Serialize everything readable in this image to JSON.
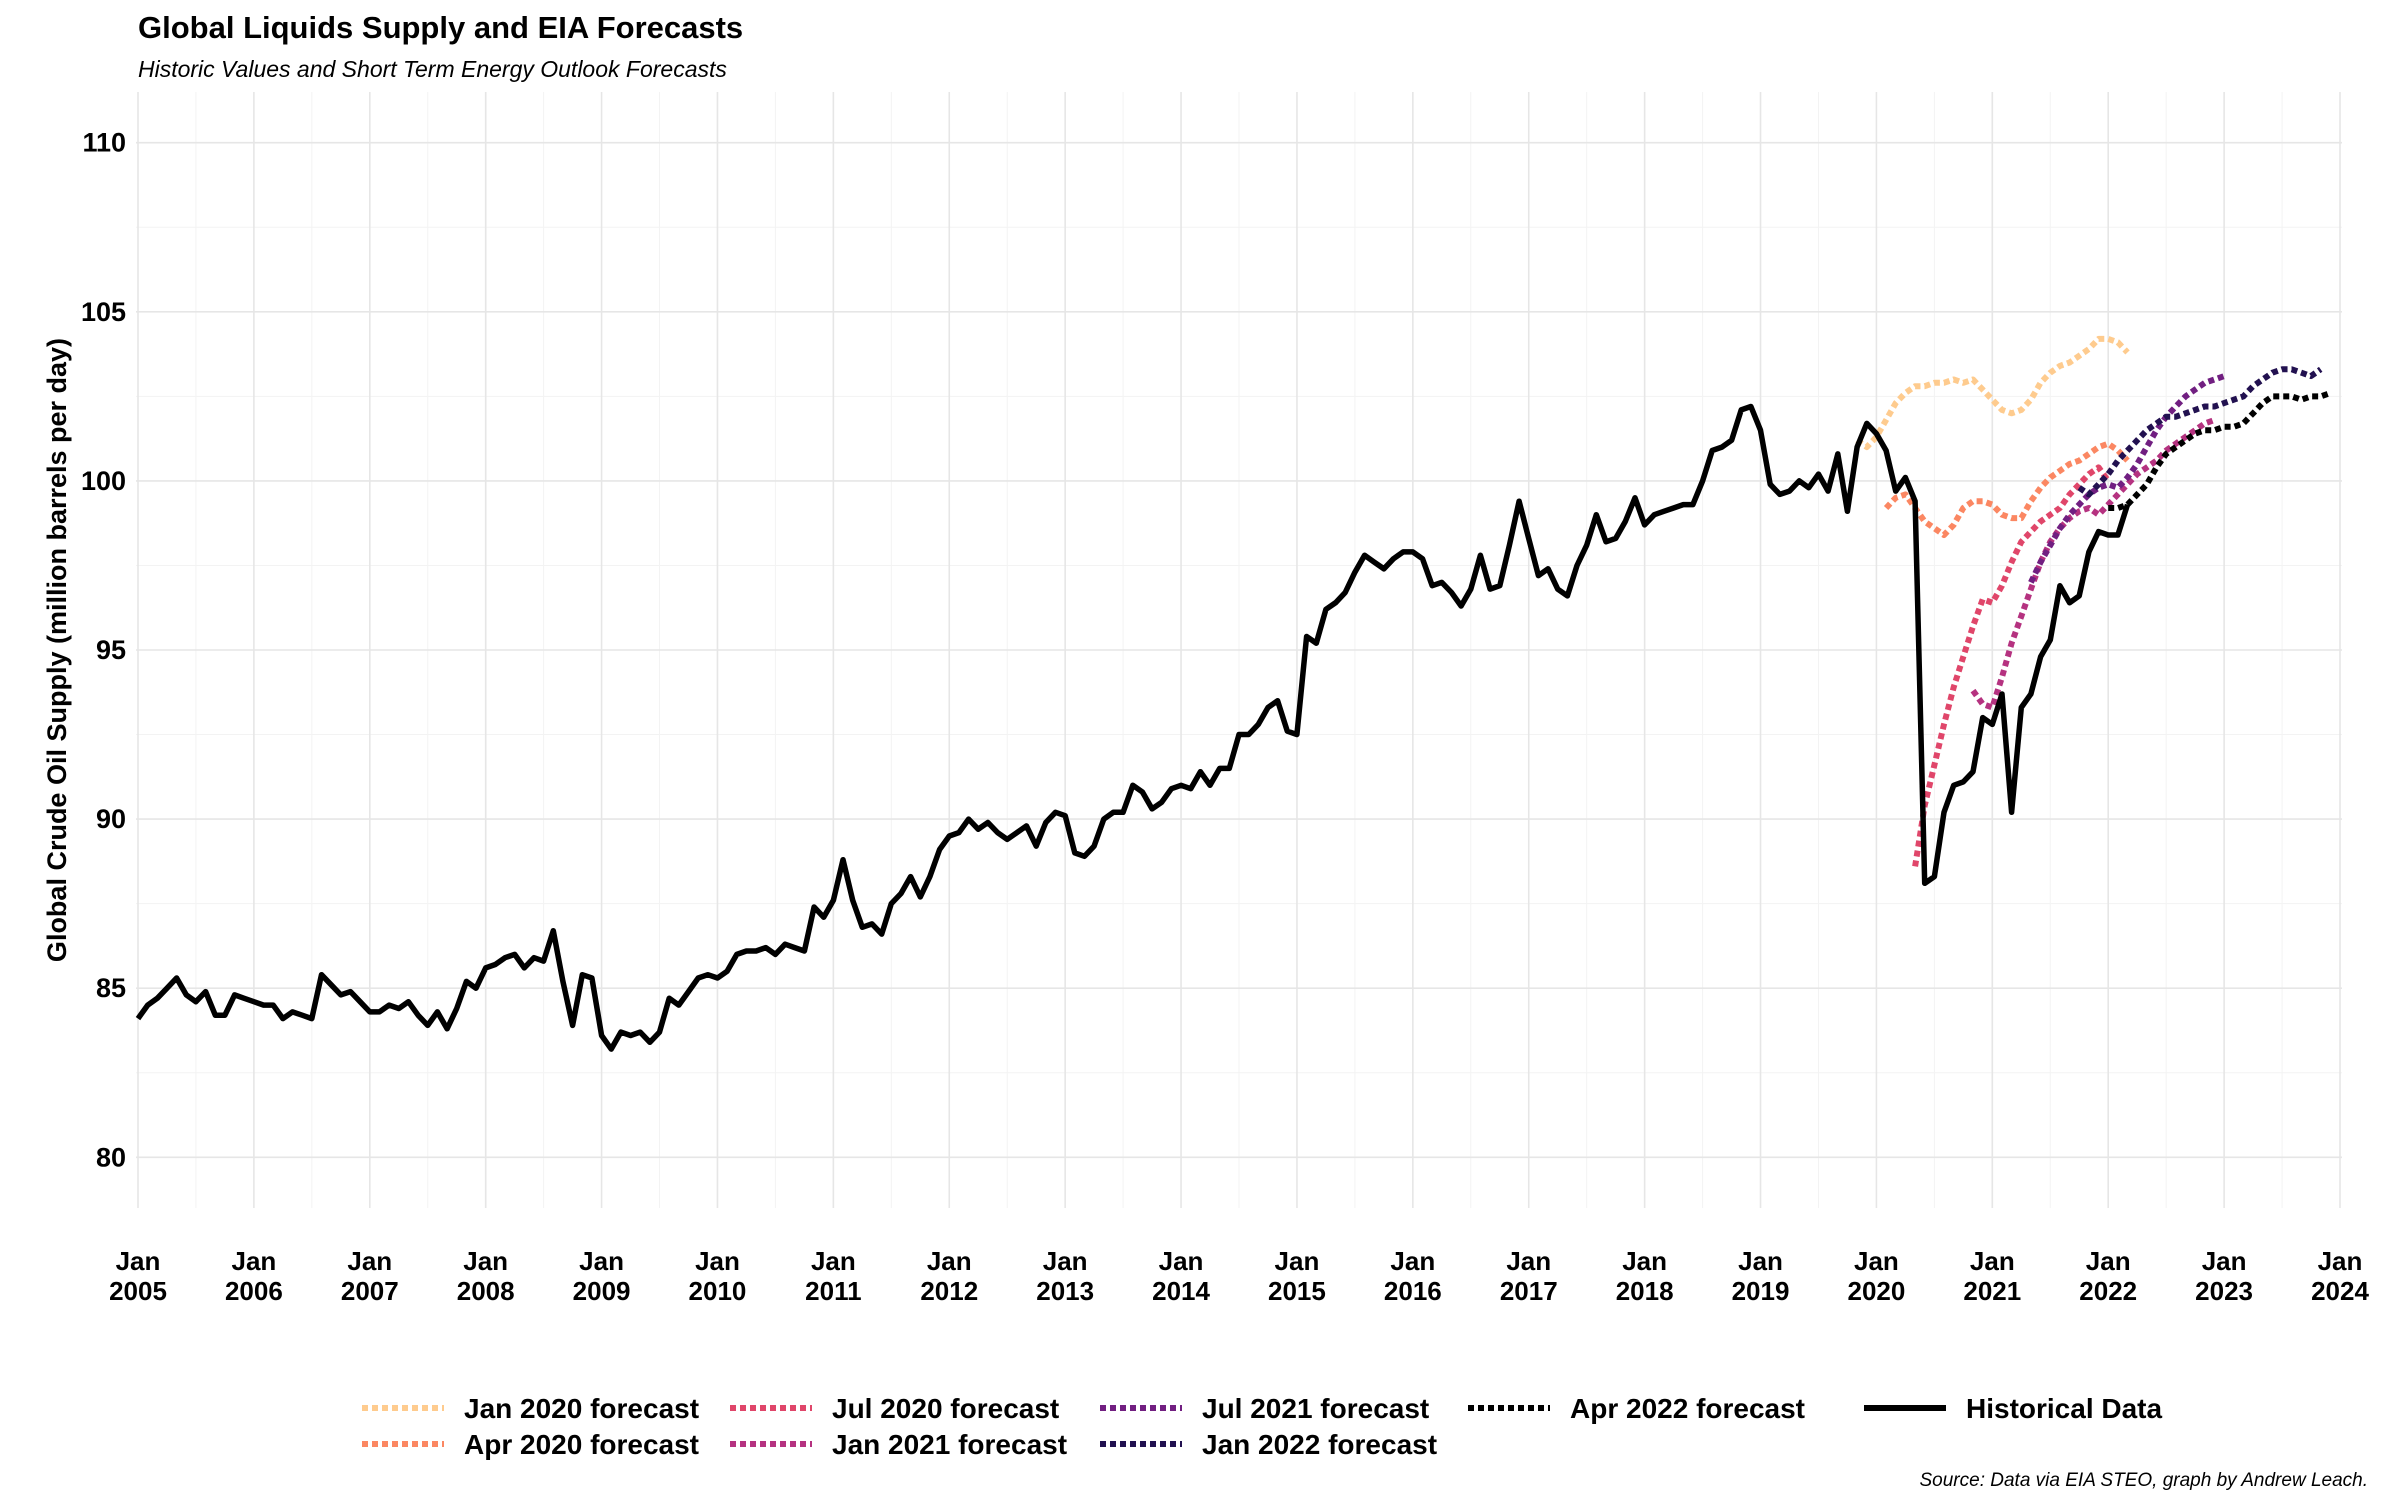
{
  "title": "Global Liquids Supply and EIA Forecasts",
  "subtitle": "Historic Values and Short Term Energy Outlook Forecasts",
  "caption": "Source: Data via EIA STEO, graph by Andrew Leach.",
  "chart_data": {
    "type": "line",
    "ylabel": "Global Crude Oil Supply (million barrels per day)",
    "ylim": [
      78.5,
      111.5
    ],
    "yticks": [
      80,
      85,
      90,
      95,
      100,
      105,
      110
    ],
    "xlim": [
      "2005-01",
      "2024-01"
    ],
    "xticks": [
      {
        "date": "2005-01",
        "line1": "Jan",
        "line2": "2005"
      },
      {
        "date": "2006-01",
        "line1": "Jan",
        "line2": "2006"
      },
      {
        "date": "2007-01",
        "line1": "Jan",
        "line2": "2007"
      },
      {
        "date": "2008-01",
        "line1": "Jan",
        "line2": "2008"
      },
      {
        "date": "2009-01",
        "line1": "Jan",
        "line2": "2009"
      },
      {
        "date": "2010-01",
        "line1": "Jan",
        "line2": "2010"
      },
      {
        "date": "2011-01",
        "line1": "Jan",
        "line2": "2011"
      },
      {
        "date": "2012-01",
        "line1": "Jan",
        "line2": "2012"
      },
      {
        "date": "2013-01",
        "line1": "Jan",
        "line2": "2013"
      },
      {
        "date": "2014-01",
        "line1": "Jan",
        "line2": "2014"
      },
      {
        "date": "2015-01",
        "line1": "Jan",
        "line2": "2015"
      },
      {
        "date": "2016-01",
        "line1": "Jan",
        "line2": "2016"
      },
      {
        "date": "2017-01",
        "line1": "Jan",
        "line2": "2017"
      },
      {
        "date": "2018-01",
        "line1": "Jan",
        "line2": "2018"
      },
      {
        "date": "2019-01",
        "line1": "Jan",
        "line2": "2019"
      },
      {
        "date": "2020-01",
        "line1": "Jan",
        "line2": "2020"
      },
      {
        "date": "2021-01",
        "line1": "Jan",
        "line2": "2021"
      },
      {
        "date": "2022-01",
        "line1": "Jan",
        "line2": "2022"
      },
      {
        "date": "2023-01",
        "line1": "Jan",
        "line2": "2023"
      },
      {
        "date": "2024-01",
        "line1": "Jan",
        "line2": "2024"
      }
    ],
    "grid": true,
    "legend_position": "bottom",
    "series": [
      {
        "name": "Jan 2020 forecast",
        "color": "#FECB8E",
        "style": "dotted",
        "start": "2019-11",
        "values": [
          101.2,
          101.0,
          101.3,
          101.8,
          102.3,
          102.6,
          102.8,
          102.8,
          102.9,
          102.9,
          103.0,
          102.9,
          103.0,
          102.7,
          102.4,
          102.1,
          102.0,
          102.1,
          102.4,
          102.9,
          103.2,
          103.4,
          103.5,
          103.7,
          103.9,
          104.2,
          104.2,
          104.1,
          103.8
        ]
      },
      {
        "name": "Apr 2020 forecast",
        "color": "#FB8762",
        "style": "dotted",
        "start": "2020-02",
        "values": [
          99.2,
          99.5,
          99.6,
          99.2,
          98.8,
          98.6,
          98.4,
          98.7,
          99.2,
          99.4,
          99.4,
          99.3,
          99.0,
          98.9,
          98.9,
          99.4,
          99.8,
          100.1,
          100.3,
          100.5,
          100.6,
          100.8,
          101.0,
          101.1,
          100.9,
          100.6
        ]
      },
      {
        "name": "Jul 2020 forecast",
        "color": "#E0466A",
        "style": "dotted",
        "start": "2020-05",
        "values": [
          88.6,
          90.4,
          91.6,
          92.8,
          93.9,
          94.8,
          95.7,
          96.5,
          96.4,
          96.9,
          97.6,
          98.2,
          98.5,
          98.8,
          99.0,
          99.2,
          99.6,
          99.9,
          100.2,
          100.4,
          100.0
        ]
      },
      {
        "name": "Jan 2021 forecast",
        "color": "#B53280",
        "style": "dotted",
        "start": "2020-11",
        "values": [
          93.8,
          93.4,
          93.3,
          94.2,
          95.2,
          96.0,
          96.8,
          97.6,
          98.2,
          98.6,
          98.9,
          99.1,
          99.2,
          99.0,
          99.3,
          99.6,
          99.9,
          100.2,
          100.4,
          100.6,
          100.9,
          101.1,
          101.3,
          101.5,
          101.7,
          101.8
        ]
      },
      {
        "name": "Jul 2021 forecast",
        "color": "#711F81",
        "style": "dotted",
        "start": "2021-05",
        "values": [
          97.0,
          97.6,
          98.1,
          98.6,
          99.0,
          99.3,
          99.6,
          99.8,
          99.9,
          99.8,
          100.1,
          100.5,
          101.0,
          101.5,
          101.9,
          102.2,
          102.5,
          102.7,
          102.9,
          103.0,
          103.1
        ]
      },
      {
        "name": "Jan 2022 forecast",
        "color": "#221150",
        "style": "dotted",
        "start": "2021-10",
        "values": [
          99.8,
          99.6,
          99.9,
          100.2,
          100.6,
          100.9,
          101.2,
          101.5,
          101.7,
          101.9,
          101.9,
          102.0,
          102.1,
          102.2,
          102.2,
          102.3,
          102.4,
          102.5,
          102.8,
          103.0,
          103.2,
          103.3,
          103.3,
          103.2,
          103.1,
          103.3
        ]
      },
      {
        "name": "Apr 2022 forecast",
        "color": "#000000",
        "style": "dotted",
        "start": "2022-01",
        "values": [
          99.2,
          99.2,
          99.3,
          99.6,
          99.9,
          100.4,
          100.8,
          101.0,
          101.2,
          101.4,
          101.5,
          101.5,
          101.6,
          101.6,
          101.7,
          102.0,
          102.3,
          102.5,
          102.5,
          102.5,
          102.4,
          102.5,
          102.5,
          102.6
        ]
      },
      {
        "name": "Historical Data",
        "color": "#000000",
        "style": "solid",
        "start": "2005-01",
        "values": [
          84.1,
          84.5,
          84.7,
          85.0,
          85.3,
          84.8,
          84.6,
          84.9,
          84.2,
          84.2,
          84.8,
          84.7,
          84.6,
          84.5,
          84.5,
          84.1,
          84.3,
          84.2,
          84.1,
          85.4,
          85.1,
          84.8,
          84.9,
          84.6,
          84.3,
          84.3,
          84.5,
          84.4,
          84.6,
          84.2,
          83.9,
          84.3,
          83.8,
          84.4,
          85.2,
          85.0,
          85.6,
          85.7,
          85.9,
          86.0,
          85.6,
          85.9,
          85.8,
          86.7,
          85.2,
          83.9,
          85.4,
          85.3,
          83.6,
          83.2,
          83.7,
          83.6,
          83.7,
          83.4,
          83.7,
          84.7,
          84.5,
          84.9,
          85.3,
          85.4,
          85.3,
          85.5,
          86.0,
          86.1,
          86.1,
          86.2,
          86.0,
          86.3,
          86.2,
          86.1,
          87.4,
          87.1,
          87.6,
          88.8,
          87.6,
          86.8,
          86.9,
          86.6,
          87.5,
          87.8,
          88.3,
          87.7,
          88.3,
          89.1,
          89.5,
          89.6,
          90.0,
          89.7,
          89.9,
          89.6,
          89.4,
          89.6,
          89.8,
          89.2,
          89.9,
          90.2,
          90.1,
          89.0,
          88.9,
          89.2,
          90.0,
          90.2,
          90.2,
          91.0,
          90.8,
          90.3,
          90.5,
          90.9,
          91.0,
          90.9,
          91.4,
          91.0,
          91.5,
          91.5,
          92.5,
          92.5,
          92.8,
          93.3,
          93.5,
          92.6,
          92.5,
          95.4,
          95.2,
          96.2,
          96.4,
          96.7,
          97.3,
          97.8,
          97.6,
          97.4,
          97.7,
          97.9,
          97.9,
          97.7,
          96.9,
          97.0,
          96.7,
          96.3,
          96.8,
          97.8,
          96.8,
          96.9,
          98.1,
          99.4,
          98.3,
          97.2,
          97.4,
          96.8,
          96.6,
          97.5,
          98.1,
          99.0,
          98.2,
          98.3,
          98.8,
          99.5,
          98.7,
          99.0,
          99.1,
          99.2,
          99.3,
          99.3,
          100.0,
          100.9,
          101.0,
          101.2,
          102.1,
          102.2,
          101.5,
          99.9,
          99.6,
          99.7,
          100.0,
          99.8,
          100.2,
          99.7,
          100.8,
          99.1,
          101.0,
          101.7,
          101.4,
          100.9,
          99.7,
          100.1,
          99.4,
          88.1,
          88.3,
          90.2,
          91.0,
          91.1,
          91.4,
          93.0,
          92.8,
          93.7,
          90.2,
          93.3,
          93.7,
          94.8,
          95.3,
          96.9,
          96.4,
          96.6,
          97.9,
          98.5,
          98.4,
          98.4,
          99.3
        ]
      }
    ]
  }
}
